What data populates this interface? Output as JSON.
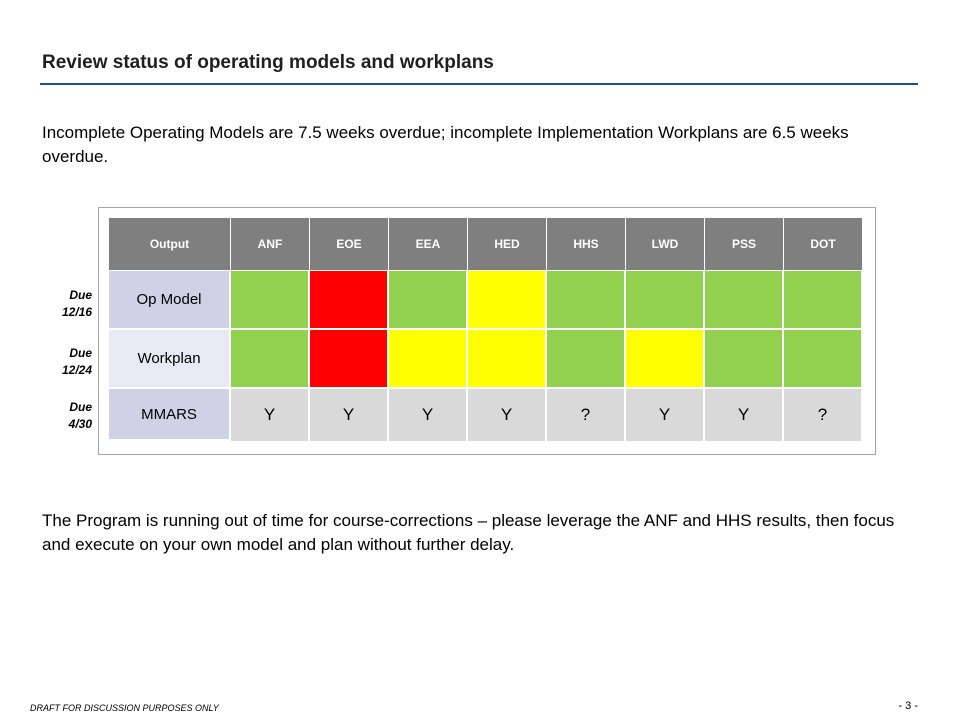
{
  "header": {
    "title": "Review status of operating models and workplans"
  },
  "intro": "Incomplete Operating Models are 7.5 weeks overdue; incomplete Implementation Workplans are 6.5 weeks overdue.",
  "closing": "The Program is running out of time for course-corrections – please leverage the ANF and HHS results, then focus and execute on your own model and plan without further delay.",
  "table": {
    "columns": [
      "Output",
      "ANF",
      "EOE",
      "EEA",
      "HED",
      "HHS",
      "LWD",
      "PSS",
      "DOT"
    ],
    "rows": [
      {
        "label": "Op Model",
        "due": "Due 12/16",
        "statuses": [
          "green",
          "red",
          "green",
          "yellow",
          "green",
          "green",
          "green",
          "green"
        ]
      },
      {
        "label": "Workplan",
        "due": "Due 12/24",
        "statuses": [
          "green",
          "red",
          "yellow",
          "yellow",
          "green",
          "yellow",
          "green",
          "green"
        ]
      },
      {
        "label": "MMARS",
        "due": "Due 4/30",
        "values": [
          "Y",
          "Y",
          "Y",
          "Y",
          "?",
          "Y",
          "Y",
          "?"
        ]
      }
    ]
  },
  "colors": {
    "green": "#92d050",
    "red": "#ff0000",
    "yellow": "#ffff00",
    "header": "#7f7f7f",
    "title_rule": "#1f4e99"
  },
  "footer": {
    "left": "DRAFT FOR DISCUSSION PURPOSES ONLY",
    "right": "- 3 -"
  }
}
